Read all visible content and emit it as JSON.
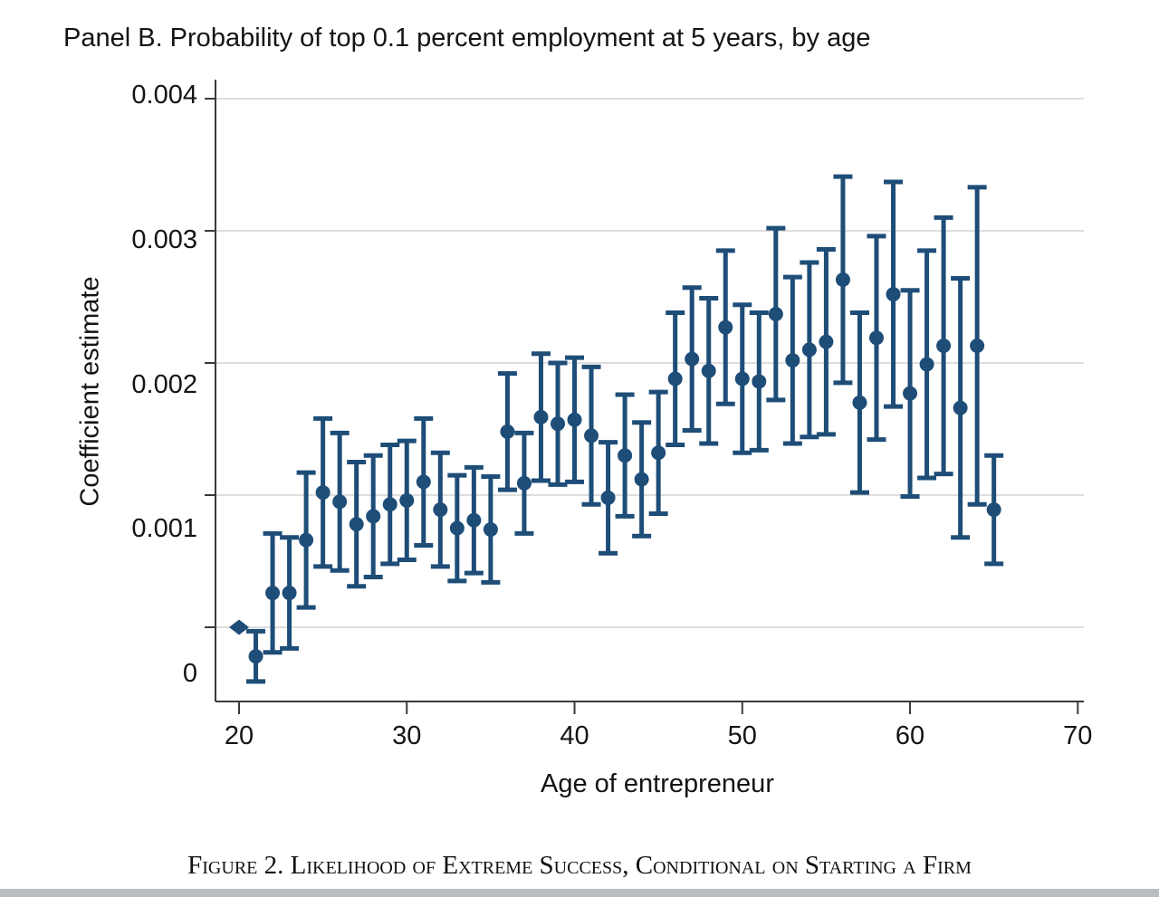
{
  "title": "Panel B. Probability of top 0.1 percent employment at 5 years, by age",
  "caption": "Figure 2. Likelihood of Extreme Success, Conditional on Starting a Firm",
  "colors": {
    "marker": "#1e4d78",
    "gridline": "#d4d4d4",
    "axis": "#3a3a3a",
    "text": "#141414",
    "background": "#ffffff",
    "bottom_strip": "#b9bdc1"
  },
  "chart_data": {
    "type": "scatter",
    "subtype": "coefficient-plot-with-95ci-error-bars",
    "title": "Panel B. Probability of top 0.1 percent employment at 5 years, by age",
    "xlabel": "Age of entrepreneur",
    "ylabel": "Coefficient estimate",
    "x_ticks": [
      20,
      30,
      40,
      50,
      60,
      70
    ],
    "y_ticks": [
      0,
      0.001,
      0.002,
      0.003,
      0.004
    ],
    "y_tick_labels": [
      "0",
      "0.001",
      "0.002",
      "0.003",
      "0.004"
    ],
    "xlim": [
      18.6,
      70.4
    ],
    "ylim": [
      -0.00056,
      0.00414
    ],
    "grid": "horizontal",
    "legend": "none",
    "reference_marker": "age 20 shown as diamond at 0 (omitted category, no CI)",
    "series": [
      {
        "name": "Coefficient estimate (95% CI)",
        "points": [
          {
            "age": 20,
            "est": 0.0,
            "lo": null,
            "hi": null
          },
          {
            "age": 21,
            "est": -0.00022,
            "lo": -0.00041,
            "hi": -3e-05
          },
          {
            "age": 22,
            "est": 0.00026,
            "lo": -0.00019,
            "hi": 0.00071
          },
          {
            "age": 23,
            "est": 0.00026,
            "lo": -0.00016,
            "hi": 0.00068
          },
          {
            "age": 24,
            "est": 0.00066,
            "lo": 0.00015,
            "hi": 0.00117
          },
          {
            "age": 25,
            "est": 0.00102,
            "lo": 0.00046,
            "hi": 0.00158
          },
          {
            "age": 26,
            "est": 0.00095,
            "lo": 0.00043,
            "hi": 0.00147
          },
          {
            "age": 27,
            "est": 0.00078,
            "lo": 0.00031,
            "hi": 0.00125
          },
          {
            "age": 28,
            "est": 0.00084,
            "lo": 0.00038,
            "hi": 0.0013
          },
          {
            "age": 29,
            "est": 0.00093,
            "lo": 0.00048,
            "hi": 0.00138
          },
          {
            "age": 30,
            "est": 0.00096,
            "lo": 0.00051,
            "hi": 0.00141
          },
          {
            "age": 31,
            "est": 0.0011,
            "lo": 0.00062,
            "hi": 0.00158
          },
          {
            "age": 32,
            "est": 0.00089,
            "lo": 0.00046,
            "hi": 0.00132
          },
          {
            "age": 33,
            "est": 0.00075,
            "lo": 0.00035,
            "hi": 0.00115
          },
          {
            "age": 34,
            "est": 0.00081,
            "lo": 0.00041,
            "hi": 0.00121
          },
          {
            "age": 35,
            "est": 0.00074,
            "lo": 0.00034,
            "hi": 0.00114
          },
          {
            "age": 36,
            "est": 0.00148,
            "lo": 0.00104,
            "hi": 0.00192
          },
          {
            "age": 37,
            "est": 0.00109,
            "lo": 0.00071,
            "hi": 0.00147
          },
          {
            "age": 38,
            "est": 0.00159,
            "lo": 0.00111,
            "hi": 0.00207
          },
          {
            "age": 39,
            "est": 0.00154,
            "lo": 0.00108,
            "hi": 0.002
          },
          {
            "age": 40,
            "est": 0.00157,
            "lo": 0.0011,
            "hi": 0.00204
          },
          {
            "age": 41,
            "est": 0.00145,
            "lo": 0.00093,
            "hi": 0.00197
          },
          {
            "age": 42,
            "est": 0.00098,
            "lo": 0.00056,
            "hi": 0.0014
          },
          {
            "age": 43,
            "est": 0.0013,
            "lo": 0.00084,
            "hi": 0.00176
          },
          {
            "age": 44,
            "est": 0.00112,
            "lo": 0.00069,
            "hi": 0.00155
          },
          {
            "age": 45,
            "est": 0.00132,
            "lo": 0.00086,
            "hi": 0.00178
          },
          {
            "age": 46,
            "est": 0.00188,
            "lo": 0.00138,
            "hi": 0.00238
          },
          {
            "age": 47,
            "est": 0.00203,
            "lo": 0.00149,
            "hi": 0.00257
          },
          {
            "age": 48,
            "est": 0.00194,
            "lo": 0.00139,
            "hi": 0.00249
          },
          {
            "age": 49,
            "est": 0.00227,
            "lo": 0.00169,
            "hi": 0.00285
          },
          {
            "age": 50,
            "est": 0.00188,
            "lo": 0.00132,
            "hi": 0.00244
          },
          {
            "age": 51,
            "est": 0.00186,
            "lo": 0.00134,
            "hi": 0.00238
          },
          {
            "age": 52,
            "est": 0.00237,
            "lo": 0.00172,
            "hi": 0.00302
          },
          {
            "age": 53,
            "est": 0.00202,
            "lo": 0.00139,
            "hi": 0.00265
          },
          {
            "age": 54,
            "est": 0.0021,
            "lo": 0.00144,
            "hi": 0.00276
          },
          {
            "age": 55,
            "est": 0.00216,
            "lo": 0.00146,
            "hi": 0.00286
          },
          {
            "age": 56,
            "est": 0.00263,
            "lo": 0.00185,
            "hi": 0.00341
          },
          {
            "age": 57,
            "est": 0.0017,
            "lo": 0.00102,
            "hi": 0.00238
          },
          {
            "age": 58,
            "est": 0.00219,
            "lo": 0.00142,
            "hi": 0.00296
          },
          {
            "age": 59,
            "est": 0.00252,
            "lo": 0.00167,
            "hi": 0.00337
          },
          {
            "age": 60,
            "est": 0.00177,
            "lo": 0.00099,
            "hi": 0.00255
          },
          {
            "age": 61,
            "est": 0.00199,
            "lo": 0.00113,
            "hi": 0.00285
          },
          {
            "age": 62,
            "est": 0.00213,
            "lo": 0.00116,
            "hi": 0.0031
          },
          {
            "age": 63,
            "est": 0.00166,
            "lo": 0.00068,
            "hi": 0.00264
          },
          {
            "age": 64,
            "est": 0.00213,
            "lo": 0.00093,
            "hi": 0.00333
          },
          {
            "age": 65,
            "est": 0.00089,
            "lo": 0.00048,
            "hi": 0.0013
          }
        ]
      }
    ]
  }
}
